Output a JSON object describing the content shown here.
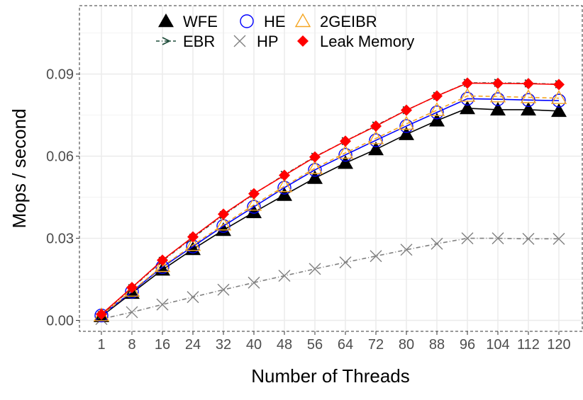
{
  "chart_data": {
    "type": "line",
    "title": "",
    "xlabel": "Number of Threads",
    "ylabel": "Mops / second",
    "categories": [
      "1",
      "8",
      "16",
      "24",
      "32",
      "40",
      "48",
      "56",
      "64",
      "72",
      "80",
      "88",
      "96",
      "104",
      "112",
      "120"
    ],
    "ylim": [
      -0.004,
      0.115
    ],
    "yticks": [
      0.0,
      0.03,
      0.06,
      0.09
    ],
    "ytick_labels": [
      "0.00",
      "0.03",
      "0.06",
      "0.09"
    ],
    "grid": true,
    "legend_position": "top-left",
    "series": [
      {
        "name": "WFE",
        "color": "#000000",
        "marker": "triangle",
        "dash": "",
        "values": [
          0.0015,
          0.01,
          0.0185,
          0.026,
          0.033,
          0.0395,
          0.0458,
          0.052,
          0.0575,
          0.0625,
          0.068,
          0.073,
          0.0775,
          0.077,
          0.077,
          0.0765
        ]
      },
      {
        "name": "HE",
        "color": "#0000ff",
        "marker": "circle-open",
        "dash": "",
        "values": [
          0.0018,
          0.0105,
          0.0195,
          0.027,
          0.0345,
          0.0415,
          0.0485,
          0.055,
          0.0605,
          0.0658,
          0.071,
          0.076,
          0.081,
          0.0808,
          0.0805,
          0.0803
        ]
      },
      {
        "name": "2GEIBR",
        "color": "#f5a623",
        "marker": "triangle-open",
        "dash": "6,4",
        "values": [
          0.0018,
          0.0108,
          0.0198,
          0.0275,
          0.035,
          0.0422,
          0.049,
          0.0556,
          0.0612,
          0.0665,
          0.0718,
          0.0768,
          0.082,
          0.0818,
          0.0815,
          0.0812
        ]
      },
      {
        "name": "EBR",
        "color": "#1f4d3a",
        "marker": "arrow",
        "dash": "5,3,1,3",
        "values": [
          0.002,
          0.0118,
          0.0218,
          0.0302,
          0.0385,
          0.0462,
          0.0532,
          0.0598,
          0.0655,
          0.0712,
          0.0768,
          0.082,
          0.0868,
          0.0868,
          0.0866,
          0.0863
        ]
      },
      {
        "name": "HP",
        "color": "#808080",
        "marker": "x",
        "dash": "6,3,1,3",
        "values": [
          0.0005,
          0.003,
          0.0058,
          0.0085,
          0.0112,
          0.0138,
          0.0163,
          0.0188,
          0.0212,
          0.0235,
          0.0258,
          0.028,
          0.03,
          0.03,
          0.0298,
          0.0298
        ]
      },
      {
        "name": "Leak Memory",
        "color": "#ff0000",
        "marker": "diamond",
        "dash": "",
        "values": [
          0.0022,
          0.012,
          0.022,
          0.0305,
          0.0388,
          0.0463,
          0.053,
          0.0597,
          0.0655,
          0.071,
          0.0768,
          0.082,
          0.0867,
          0.0866,
          0.0865,
          0.0862
        ]
      }
    ]
  }
}
